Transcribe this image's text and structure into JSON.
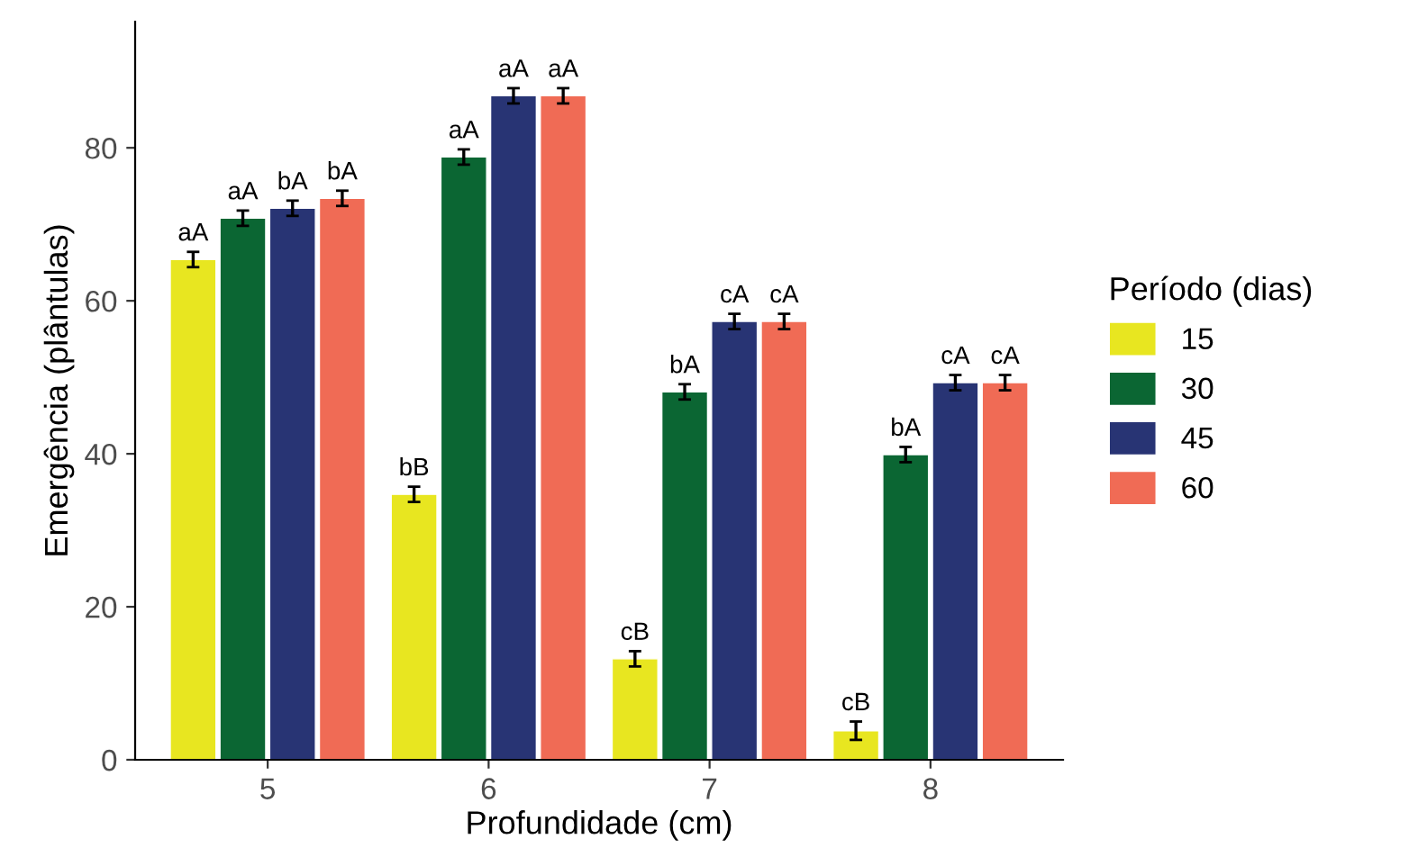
{
  "chart_data": {
    "type": "bar",
    "xlabel": "Profundidade (cm)",
    "ylabel": "Emergência (plântulas)",
    "legend_title": "Período (dias)",
    "legend": "right",
    "categories": [
      "5",
      "6",
      "7",
      "8"
    ],
    "ylim": [
      0,
      96.5
    ],
    "yticks": [
      0,
      20,
      40,
      60,
      80
    ],
    "grid": false,
    "series": [
      {
        "name": "15",
        "color": "#e8e620",
        "values": [
          65.4,
          34.7,
          13.2,
          3.8
        ],
        "errors": [
          1,
          1,
          1,
          1.2
        ],
        "value_labels": [
          "aA",
          "bB",
          "cB",
          "cB"
        ]
      },
      {
        "name": "30",
        "color": "#0b6633",
        "values": [
          70.8,
          78.8,
          48.1,
          39.9
        ],
        "errors": [
          1,
          1,
          1,
          1
        ],
        "value_labels": [
          "aA",
          "aA",
          "bA",
          "bA"
        ]
      },
      {
        "name": "45",
        "color": "#283474",
        "values": [
          72.1,
          86.8,
          57.3,
          49.3
        ],
        "errors": [
          1,
          1,
          1,
          1
        ],
        "value_labels": [
          "bA",
          "aA",
          "cA",
          "cA"
        ]
      },
      {
        "name": "60",
        "color": "#f06b55",
        "values": [
          73.4,
          86.8,
          57.3,
          49.3
        ],
        "errors": [
          1,
          1,
          1,
          1
        ],
        "value_labels": [
          "bA",
          "aA",
          "cA",
          "cA"
        ]
      }
    ]
  }
}
